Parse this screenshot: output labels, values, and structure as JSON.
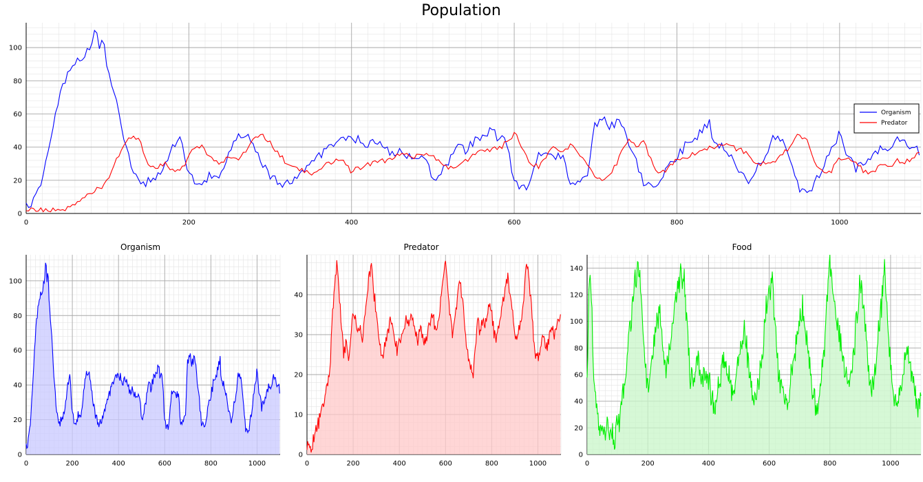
{
  "chart_data": [
    {
      "id": "population",
      "type": "line",
      "title": "Population",
      "xlim": [
        0,
        1100
      ],
      "ylim": [
        0,
        115
      ],
      "xticks": [
        0,
        200,
        400,
        600,
        800,
        1000
      ],
      "yticks": [
        0,
        20,
        40,
        60,
        80,
        100
      ],
      "grid": true,
      "legend": {
        "placement": "right",
        "entries": [
          "Organism",
          "Predator"
        ]
      },
      "series": [
        {
          "name": "Organism",
          "color": "#0000ff",
          "x": [
            0,
            10,
            20,
            30,
            40,
            50,
            60,
            70,
            80,
            85,
            90,
            95,
            100,
            110,
            120,
            130,
            140,
            150,
            160,
            180,
            190,
            200,
            210,
            220,
            240,
            260,
            270,
            280,
            300,
            310,
            320,
            330,
            350,
            370,
            390,
            410,
            420,
            430,
            440,
            460,
            480,
            490,
            500,
            510,
            520,
            530,
            540,
            560,
            575,
            580,
            590,
            600,
            610,
            620,
            630,
            640,
            650,
            660,
            670,
            680,
            690,
            700,
            710,
            720,
            730,
            740,
            750,
            760,
            770,
            780,
            790,
            800,
            810,
            820,
            840,
            850,
            860,
            870,
            880,
            890,
            900,
            910,
            920,
            930,
            940,
            950,
            960,
            970,
            980,
            990,
            1000,
            1010,
            1020,
            1030,
            1040,
            1050,
            1060,
            1070,
            1080,
            1090,
            1100
          ],
          "y": [
            5,
            8,
            20,
            45,
            68,
            82,
            92,
            96,
            101,
            114,
            100,
            104,
            85,
            70,
            45,
            25,
            18,
            20,
            22,
            38,
            45,
            25,
            18,
            20,
            25,
            45,
            50,
            40,
            22,
            18,
            16,
            20,
            30,
            40,
            44,
            46,
            40,
            42,
            38,
            36,
            33,
            34,
            20,
            25,
            30,
            42,
            38,
            48,
            52,
            44,
            45,
            20,
            16,
            18,
            35,
            38,
            32,
            34,
            15,
            18,
            25,
            55,
            58,
            52,
            56,
            45,
            30,
            18,
            14,
            20,
            30,
            34,
            40,
            46,
            53,
            40,
            38,
            30,
            22,
            18,
            28,
            36,
            48,
            42,
            30,
            15,
            12,
            18,
            28,
            38,
            48,
            35,
            28,
            30,
            34,
            38,
            40,
            45,
            44,
            40,
            36
          ]
        },
        {
          "name": "Predator",
          "color": "#ff0000",
          "x": [
            0,
            20,
            40,
            50,
            60,
            70,
            80,
            90,
            100,
            110,
            120,
            130,
            140,
            150,
            160,
            170,
            180,
            190,
            200,
            210,
            220,
            230,
            240,
            250,
            260,
            270,
            280,
            290,
            300,
            310,
            320,
            330,
            340,
            350,
            370,
            390,
            400,
            420,
            440,
            460,
            480,
            500,
            510,
            520,
            530,
            540,
            560,
            580,
            590,
            600,
            610,
            620,
            630,
            640,
            650,
            660,
            670,
            680,
            690,
            700,
            710,
            720,
            730,
            740,
            750,
            760,
            770,
            780,
            790,
            800,
            820,
            840,
            860,
            880,
            900,
            920,
            940,
            950,
            960,
            970,
            980,
            990,
            1000,
            1010,
            1020,
            1030,
            1040,
            1050,
            1060,
            1070,
            1080,
            1090,
            1100
          ],
          "y": [
            2,
            2,
            2,
            3,
            6,
            10,
            12,
            15,
            20,
            32,
            40,
            47,
            44,
            30,
            28,
            30,
            26,
            25,
            35,
            42,
            38,
            32,
            30,
            35,
            32,
            38,
            45,
            48,
            42,
            36,
            30,
            28,
            26,
            24,
            30,
            32,
            25,
            30,
            32,
            36,
            34,
            35,
            30,
            27,
            28,
            32,
            38,
            40,
            42,
            49,
            38,
            30,
            28,
            35,
            40,
            38,
            42,
            34,
            30,
            22,
            20,
            25,
            35,
            45,
            40,
            44,
            30,
            24,
            28,
            32,
            36,
            40,
            42,
            38,
            30,
            32,
            40,
            48,
            44,
            30,
            24,
            26,
            33,
            34,
            30,
            26,
            24,
            30,
            28,
            32,
            30,
            34,
            37
          ]
        }
      ]
    },
    {
      "id": "organism",
      "type": "area",
      "title": "Organism",
      "xlim": [
        0,
        1100
      ],
      "ylim": [
        0,
        115
      ],
      "xticks": [
        0,
        200,
        400,
        600,
        800,
        1000
      ],
      "yticks": [
        0,
        20,
        40,
        60,
        80,
        100
      ],
      "grid": true,
      "line_color": "#0000ff",
      "fill_color": "#c8c8ff",
      "series_ref": "population.Organism"
    },
    {
      "id": "predator",
      "type": "area",
      "title": "Predator",
      "xlim": [
        0,
        1100
      ],
      "ylim": [
        0,
        50
      ],
      "xticks": [
        0,
        200,
        400,
        600,
        800,
        1000
      ],
      "yticks": [
        0,
        10,
        20,
        30,
        40
      ],
      "grid": true,
      "line_color": "#ff0000",
      "fill_color": "#ffc8c8",
      "x": [
        0,
        20,
        30,
        40,
        50,
        60,
        70,
        80,
        90,
        100,
        110,
        120,
        130,
        140,
        150,
        160,
        170,
        180,
        190,
        200,
        210,
        220,
        230,
        240,
        250,
        260,
        270,
        280,
        290,
        300,
        310,
        320,
        330,
        340,
        350,
        360,
        370,
        380,
        390,
        400,
        410,
        420,
        430,
        440,
        450,
        460,
        470,
        480,
        490,
        500,
        510,
        520,
        530,
        540,
        550,
        560,
        570,
        580,
        590,
        600,
        610,
        620,
        630,
        640,
        650,
        660,
        670,
        680,
        690,
        700,
        710,
        720,
        730,
        740,
        750,
        760,
        770,
        780,
        790,
        800,
        810,
        820,
        830,
        840,
        850,
        860,
        870,
        880,
        890,
        900,
        910,
        920,
        930,
        940,
        950,
        960,
        970,
        980,
        990,
        1000,
        1010,
        1020,
        1030,
        1040,
        1050,
        1060,
        1070,
        1080,
        1090,
        1100
      ],
      "y": [
        2,
        2,
        4,
        6,
        8,
        10,
        12,
        15,
        18,
        22,
        35,
        42,
        48,
        40,
        32,
        25,
        28,
        24,
        30,
        36,
        34,
        30,
        32,
        28,
        35,
        40,
        45,
        48,
        40,
        36,
        30,
        26,
        24,
        28,
        30,
        34,
        32,
        30,
        26,
        28,
        30,
        32,
        34,
        32,
        36,
        34,
        30,
        28,
        32,
        30,
        28,
        30,
        32,
        35,
        33,
        31,
        34,
        38,
        44,
        49,
        42,
        35,
        30,
        34,
        38,
        44,
        40,
        35,
        28,
        24,
        22,
        20,
        28,
        35,
        30,
        34,
        32,
        35,
        38,
        36,
        30,
        28,
        32,
        36,
        38,
        42,
        44,
        40,
        36,
        30,
        28,
        32,
        34,
        40,
        48,
        45,
        38,
        30,
        25,
        24,
        26,
        30,
        28,
        26,
        30,
        32,
        30,
        32,
        34,
        37
      ]
    },
    {
      "id": "food",
      "type": "area",
      "title": "Food",
      "xlim": [
        0,
        1100
      ],
      "ylim": [
        0,
        150
      ],
      "xticks": [
        0,
        200,
        400,
        600,
        800,
        1000
      ],
      "yticks": [
        0,
        20,
        40,
        60,
        80,
        100,
        120,
        140
      ],
      "grid": true,
      "line_color": "#00ee00",
      "fill_color": "#c8f5c8",
      "x": [
        0,
        5,
        10,
        15,
        20,
        30,
        40,
        50,
        60,
        70,
        80,
        90,
        100,
        110,
        120,
        130,
        140,
        150,
        160,
        170,
        180,
        190,
        200,
        210,
        220,
        230,
        240,
        250,
        260,
        270,
        280,
        290,
        300,
        310,
        320,
        330,
        340,
        350,
        360,
        370,
        380,
        390,
        400,
        410,
        420,
        430,
        440,
        450,
        460,
        470,
        480,
        490,
        500,
        510,
        520,
        530,
        540,
        550,
        560,
        570,
        580,
        590,
        600,
        610,
        620,
        630,
        640,
        650,
        660,
        670,
        680,
        690,
        700,
        710,
        720,
        730,
        740,
        750,
        760,
        770,
        780,
        790,
        800,
        810,
        820,
        830,
        840,
        850,
        860,
        870,
        880,
        890,
        900,
        910,
        920,
        930,
        940,
        950,
        960,
        970,
        980,
        990,
        1000,
        1010,
        1020,
        1030,
        1040,
        1050,
        1060,
        1070,
        1080,
        1090,
        1100
      ],
      "y": [
        60,
        120,
        133,
        110,
        70,
        30,
        22,
        18,
        12,
        25,
        15,
        8,
        20,
        30,
        45,
        70,
        95,
        115,
        130,
        140,
        110,
        70,
        50,
        65,
        80,
        100,
        110,
        80,
        60,
        75,
        95,
        110,
        125,
        135,
        130,
        90,
        60,
        55,
        70,
        65,
        58,
        60,
        55,
        45,
        38,
        50,
        62,
        70,
        65,
        55,
        45,
        60,
        75,
        90,
        95,
        70,
        55,
        40,
        50,
        60,
        80,
        110,
        120,
        135,
        95,
        60,
        55,
        45,
        40,
        55,
        70,
        85,
        100,
        110,
        90,
        75,
        55,
        40,
        35,
        55,
        75,
        110,
        148,
        120,
        100,
        90,
        75,
        60,
        55,
        60,
        80,
        105,
        130,
        115,
        90,
        60,
        50,
        65,
        90,
        110,
        146,
        100,
        70,
        40,
        35,
        45,
        60,
        78,
        70,
        55,
        45,
        35,
        42
      ]
    }
  ]
}
